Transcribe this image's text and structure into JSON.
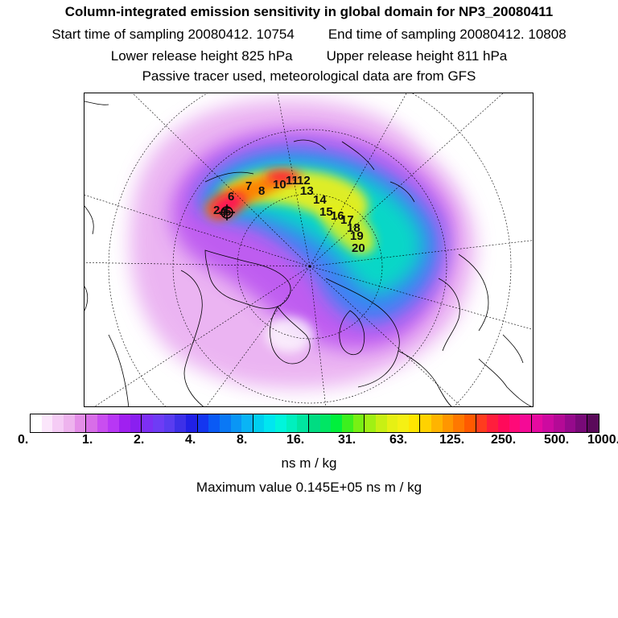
{
  "header": {
    "title": "Column-integrated emission sensitivity in global domain for NP3_20080411",
    "start_time": "Start time of sampling 20080412. 10754",
    "end_time": "End time of sampling 20080412. 10808",
    "lower_release": "Lower release height  825 hPa",
    "upper_release": "Upper release height  811 hPa",
    "note": "Passive tracer used, meteorological data are from GFS"
  },
  "colorbar": {
    "colors": [
      "#ffffff",
      "#fbe6fb",
      "#f5ccf5",
      "#eeb3ee",
      "#e48ee8",
      "#d86ee8",
      "#c94ef0",
      "#b837f5",
      "#a020f0",
      "#8a1ff0",
      "#7d2ff5",
      "#6e3cf5",
      "#5a3cf0",
      "#3d30e8",
      "#2020e6",
      "#1436f0",
      "#0a5af5",
      "#0a78f5",
      "#0a96f5",
      "#0ab4f5",
      "#00cff0",
      "#00e6f0",
      "#00f5dc",
      "#00f0be",
      "#00e6a0",
      "#00dc82",
      "#00e664",
      "#00f03c",
      "#3cf01e",
      "#78f014",
      "#a0f014",
      "#c8f014",
      "#e6f014",
      "#f5f014",
      "#ffe600",
      "#ffd200",
      "#ffb400",
      "#ff9600",
      "#ff7800",
      "#ff5a00",
      "#ff3c1e",
      "#ff1e3c",
      "#ff0a5a",
      "#ff0a78",
      "#f50a96",
      "#e60aa0",
      "#cd0aa0",
      "#b40a96",
      "#960a8c",
      "#780a78",
      "#5a0a5a"
    ],
    "tick_labels": [
      "0.",
      "1.",
      "2.",
      "4.",
      "8.",
      "16.",
      "31.",
      "63.",
      "125.",
      "250.",
      "500.",
      "1000."
    ],
    "unit": "ns m / kg"
  },
  "maximum": "Maximum value  0.145E+05 ns m / kg",
  "map": {
    "projection": "polar stereographic, north pole",
    "track_labels": [
      "2",
      "4",
      "5",
      "6",
      "7",
      "8",
      "10",
      "11",
      "12",
      "13",
      "14",
      "15",
      "16",
      "17",
      "18",
      "19",
      "20"
    ]
  }
}
